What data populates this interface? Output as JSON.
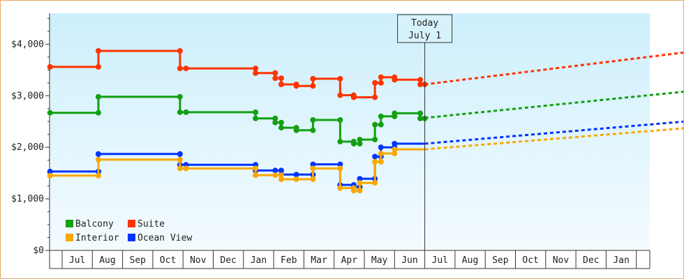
{
  "colors": {
    "plot_bg_top": "#cdeffb",
    "plot_bg_bottom": "#f4fbff",
    "axis": "#333333",
    "frame_border": "#e8a868"
  },
  "annotation": {
    "line1": "Today",
    "line2": "July 1",
    "x": 12
  },
  "chart_data": {
    "type": "line",
    "title": "",
    "xlabel": "",
    "ylabel": "",
    "ylim": [
      0,
      4600
    ],
    "xlim": [
      0,
      20
    ],
    "yticks": [
      0,
      1000,
      2000,
      3000,
      4000
    ],
    "ytick_labels": [
      "$0",
      "$1,000",
      "$2,000",
      "$3,000",
      "$4,000"
    ],
    "month_labels": [
      "Jul",
      "Aug",
      "Sep",
      "Oct",
      "Nov",
      "Dec",
      "Jan",
      "Feb",
      "Mar",
      "Apr",
      "May",
      "Jun",
      "Jul",
      "Aug",
      "Sep",
      "Oct",
      "Nov",
      "Dec",
      "Jan"
    ],
    "legend": {
      "placement": "bottom-left"
    },
    "x_unit_note": "x in months from start of Jul (left edge of first month cell)",
    "series": [
      {
        "name": "Balcony",
        "color": "#13a013",
        "historical": [
          [
            -0.4,
            2670
          ],
          [
            1.2,
            2670
          ],
          [
            1.2,
            2980
          ],
          [
            3.9,
            2980
          ],
          [
            3.9,
            2680
          ],
          [
            4.1,
            2680
          ],
          [
            6.4,
            2680
          ],
          [
            6.4,
            2560
          ],
          [
            7.05,
            2560
          ],
          [
            7.05,
            2480
          ],
          [
            7.25,
            2480
          ],
          [
            7.25,
            2380
          ],
          [
            7.75,
            2380
          ],
          [
            7.75,
            2330
          ],
          [
            8.3,
            2330
          ],
          [
            8.3,
            2530
          ],
          [
            9.2,
            2530
          ],
          [
            9.2,
            2110
          ],
          [
            9.65,
            2110
          ],
          [
            9.65,
            2070
          ],
          [
            9.85,
            2070
          ],
          [
            9.85,
            2150
          ],
          [
            10.35,
            2150
          ],
          [
            10.35,
            2440
          ],
          [
            10.55,
            2440
          ],
          [
            10.55,
            2600
          ],
          [
            11.0,
            2600
          ],
          [
            11.0,
            2660
          ],
          [
            11.85,
            2660
          ],
          [
            11.85,
            2560
          ],
          [
            12.0,
            2560
          ]
        ],
        "markers": [
          [
            -0.4,
            2670
          ],
          [
            1.2,
            2670
          ],
          [
            1.2,
            2980
          ],
          [
            3.9,
            2980
          ],
          [
            3.9,
            2680
          ],
          [
            4.1,
            2680
          ],
          [
            6.4,
            2680
          ],
          [
            6.4,
            2560
          ],
          [
            7.05,
            2560
          ],
          [
            7.05,
            2480
          ],
          [
            7.25,
            2480
          ],
          [
            7.25,
            2380
          ],
          [
            7.75,
            2380
          ],
          [
            7.75,
            2330
          ],
          [
            8.3,
            2330
          ],
          [
            8.3,
            2530
          ],
          [
            9.2,
            2530
          ],
          [
            9.2,
            2110
          ],
          [
            9.65,
            2110
          ],
          [
            9.65,
            2070
          ],
          [
            9.85,
            2070
          ],
          [
            9.85,
            2150
          ],
          [
            10.35,
            2150
          ],
          [
            10.35,
            2440
          ],
          [
            10.55,
            2440
          ],
          [
            10.55,
            2600
          ],
          [
            11.0,
            2600
          ],
          [
            11.0,
            2660
          ],
          [
            11.85,
            2660
          ],
          [
            11.85,
            2560
          ],
          [
            12.0,
            2560
          ]
        ],
        "forecast": [
          [
            12.0,
            2570
          ],
          [
            20.6,
            3080
          ]
        ]
      },
      {
        "name": "Suite",
        "color": "#ff3300",
        "historical": [
          [
            -0.4,
            3560
          ],
          [
            1.2,
            3560
          ],
          [
            1.2,
            3870
          ],
          [
            3.9,
            3870
          ],
          [
            3.9,
            3530
          ],
          [
            4.1,
            3530
          ],
          [
            6.4,
            3530
          ],
          [
            6.4,
            3440
          ],
          [
            7.05,
            3440
          ],
          [
            7.05,
            3340
          ],
          [
            7.25,
            3340
          ],
          [
            7.25,
            3220
          ],
          [
            7.75,
            3220
          ],
          [
            7.75,
            3190
          ],
          [
            8.3,
            3190
          ],
          [
            8.3,
            3330
          ],
          [
            9.2,
            3330
          ],
          [
            9.2,
            3010
          ],
          [
            9.65,
            3010
          ],
          [
            9.65,
            2970
          ],
          [
            10.35,
            2970
          ],
          [
            10.35,
            3250
          ],
          [
            10.55,
            3250
          ],
          [
            10.55,
            3360
          ],
          [
            11.0,
            3360
          ],
          [
            11.0,
            3310
          ],
          [
            11.85,
            3310
          ],
          [
            11.85,
            3220
          ],
          [
            12.0,
            3220
          ]
        ],
        "markers": [
          [
            -0.4,
            3560
          ],
          [
            1.2,
            3560
          ],
          [
            1.2,
            3870
          ],
          [
            3.9,
            3870
          ],
          [
            3.9,
            3530
          ],
          [
            4.1,
            3530
          ],
          [
            6.4,
            3530
          ],
          [
            6.4,
            3440
          ],
          [
            7.05,
            3440
          ],
          [
            7.05,
            3340
          ],
          [
            7.25,
            3340
          ],
          [
            7.25,
            3220
          ],
          [
            7.75,
            3220
          ],
          [
            7.75,
            3190
          ],
          [
            8.3,
            3190
          ],
          [
            8.3,
            3330
          ],
          [
            9.2,
            3330
          ],
          [
            9.2,
            3010
          ],
          [
            9.65,
            3010
          ],
          [
            9.65,
            2970
          ],
          [
            10.35,
            2970
          ],
          [
            10.35,
            3250
          ],
          [
            10.55,
            3250
          ],
          [
            10.55,
            3360
          ],
          [
            11.0,
            3360
          ],
          [
            11.0,
            3310
          ],
          [
            11.85,
            3310
          ],
          [
            11.85,
            3220
          ],
          [
            12.0,
            3220
          ]
        ],
        "forecast": [
          [
            12.0,
            3220
          ],
          [
            20.6,
            3840
          ]
        ]
      },
      {
        "name": "Interior",
        "color": "#f8a800",
        "historical": [
          [
            -0.4,
            1450
          ],
          [
            1.2,
            1450
          ],
          [
            1.2,
            1760
          ],
          [
            3.9,
            1760
          ],
          [
            3.9,
            1590
          ],
          [
            4.1,
            1590
          ],
          [
            6.4,
            1590
          ],
          [
            6.4,
            1460
          ],
          [
            7.05,
            1460
          ],
          [
            7.05,
            1460
          ],
          [
            7.25,
            1460
          ],
          [
            7.25,
            1380
          ],
          [
            7.75,
            1380
          ],
          [
            8.3,
            1380
          ],
          [
            8.3,
            1590
          ],
          [
            9.2,
            1590
          ],
          [
            9.2,
            1210
          ],
          [
            9.65,
            1210
          ],
          [
            9.65,
            1160
          ],
          [
            9.85,
            1160
          ],
          [
            9.85,
            1310
          ],
          [
            10.35,
            1310
          ],
          [
            10.35,
            1720
          ],
          [
            10.55,
            1720
          ],
          [
            10.55,
            1880
          ],
          [
            11.0,
            1880
          ],
          [
            11.0,
            1960
          ],
          [
            12.0,
            1960
          ]
        ],
        "markers": [
          [
            -0.4,
            1450
          ],
          [
            1.2,
            1450
          ],
          [
            1.2,
            1760
          ],
          [
            3.9,
            1760
          ],
          [
            3.9,
            1590
          ],
          [
            4.1,
            1590
          ],
          [
            6.4,
            1590
          ],
          [
            6.4,
            1460
          ],
          [
            7.05,
            1460
          ],
          [
            7.25,
            1460
          ],
          [
            7.25,
            1380
          ],
          [
            7.75,
            1380
          ],
          [
            8.3,
            1380
          ],
          [
            8.3,
            1590
          ],
          [
            9.2,
            1590
          ],
          [
            9.2,
            1210
          ],
          [
            9.65,
            1210
          ],
          [
            9.65,
            1160
          ],
          [
            9.85,
            1160
          ],
          [
            9.85,
            1310
          ],
          [
            10.35,
            1310
          ],
          [
            10.35,
            1720
          ],
          [
            10.55,
            1720
          ],
          [
            10.55,
            1880
          ],
          [
            11.0,
            1880
          ],
          [
            11.0,
            1960
          ]
        ],
        "forecast": [
          [
            12.0,
            1960
          ],
          [
            20.6,
            2370
          ]
        ]
      },
      {
        "name": "Ocean View",
        "color": "#0033ff",
        "historical": [
          [
            -0.4,
            1530
          ],
          [
            1.2,
            1530
          ],
          [
            1.2,
            1870
          ],
          [
            3.9,
            1870
          ],
          [
            3.9,
            1660
          ],
          [
            4.1,
            1660
          ],
          [
            6.4,
            1660
          ],
          [
            6.4,
            1550
          ],
          [
            7.05,
            1550
          ],
          [
            7.05,
            1550
          ],
          [
            7.25,
            1550
          ],
          [
            7.25,
            1470
          ],
          [
            7.75,
            1470
          ],
          [
            8.3,
            1470
          ],
          [
            8.3,
            1670
          ],
          [
            9.2,
            1670
          ],
          [
            9.2,
            1270
          ],
          [
            9.65,
            1270
          ],
          [
            9.65,
            1230
          ],
          [
            9.85,
            1230
          ],
          [
            9.85,
            1390
          ],
          [
            10.35,
            1390
          ],
          [
            10.35,
            1820
          ],
          [
            10.55,
            1820
          ],
          [
            10.55,
            2000
          ],
          [
            11.0,
            2000
          ],
          [
            11.0,
            2070
          ],
          [
            12.0,
            2070
          ]
        ],
        "markers": [
          [
            -0.4,
            1530
          ],
          [
            1.2,
            1530
          ],
          [
            1.2,
            1870
          ],
          [
            3.9,
            1870
          ],
          [
            3.9,
            1660
          ],
          [
            4.1,
            1660
          ],
          [
            6.4,
            1660
          ],
          [
            6.4,
            1550
          ],
          [
            7.05,
            1550
          ],
          [
            7.25,
            1550
          ],
          [
            7.25,
            1470
          ],
          [
            7.75,
            1470
          ],
          [
            8.3,
            1470
          ],
          [
            8.3,
            1670
          ],
          [
            9.2,
            1670
          ],
          [
            9.2,
            1270
          ],
          [
            9.65,
            1270
          ],
          [
            9.65,
            1230
          ],
          [
            9.85,
            1230
          ],
          [
            9.85,
            1390
          ],
          [
            10.35,
            1390
          ],
          [
            10.35,
            1820
          ],
          [
            10.55,
            1820
          ],
          [
            10.55,
            2000
          ],
          [
            11.0,
            2000
          ],
          [
            11.0,
            2070
          ]
        ],
        "forecast": [
          [
            12.0,
            2070
          ],
          [
            20.6,
            2500
          ]
        ]
      }
    ]
  }
}
